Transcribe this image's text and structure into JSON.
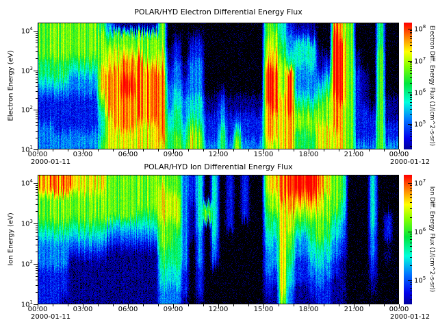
{
  "figure": {
    "background": "#ffffff"
  },
  "colormap": {
    "name": "idl-rainbow-black-low",
    "stops": [
      [
        0.0,
        0,
        0,
        0
      ],
      [
        0.08,
        0,
        0,
        110
      ],
      [
        0.2,
        0,
        0,
        235
      ],
      [
        0.33,
        0,
        120,
        255
      ],
      [
        0.45,
        0,
        255,
        220
      ],
      [
        0.58,
        0,
        230,
        60
      ],
      [
        0.7,
        130,
        255,
        0
      ],
      [
        0.8,
        255,
        255,
        0
      ],
      [
        0.9,
        255,
        130,
        0
      ],
      [
        1.0,
        255,
        0,
        0
      ]
    ]
  },
  "chart_data": [
    {
      "type": "heatmap",
      "title": "POLAR/HYD  Electron Differential Energy Flux",
      "ylabel": "Electron Energy (eV)",
      "colorbar_label": "Electron Diff. Energy Flux (1/(cm^2-s-sr))",
      "x_ticks": [
        "00:00",
        "03:00",
        "06:00",
        "09:00",
        "12:00",
        "15:00",
        "18:00",
        "21:00",
        "00:00"
      ],
      "start_date": "2000-01-11",
      "end_date": "2000-01-12",
      "time_range_hours": [
        0,
        24
      ],
      "y_tick_exponents": [
        4,
        3,
        2,
        1
      ],
      "y_axis_log_range": [
        1.0,
        4.21
      ],
      "colorbar_tick_exponents": [
        8,
        7,
        6,
        5
      ],
      "colorbar_log_range": [
        4.2,
        8.2
      ],
      "grid_note": "rows: energy bins top 10^4.2 eV to bottom 10^1 eV; cols: 48 half-hour bins 00:00-24:00; digit 0=no flux(black) .. 9=max flux(red)",
      "grid": [
        "666666665311111160000000000000654211100876000500",
        "666666666566666660101100000000664322200976000500",
        "666666666666666660202200000000765344400986000500",
        "666666666777776671202200000000775444411986100600",
        "555555556778887771313300000000876544412986100600",
        "555544447888888882313300000000986933323986210600",
        "444433337889988882323300000000986933334986210600",
        "333333337889988883423300100000986933345986210600",
        "222222226888888883434411211111987944456886210611",
        "222222225888888883534411311111887955566876221611",
        "222222224788888884535422322222877866666876222611",
        "332222224788877784546522423222877866677876222622",
        "333333334777777785647622525222877855577776222622",
        "333333335777777775657633536333767855577776333633"
      ]
    },
    {
      "type": "heatmap",
      "title": "POLAR/HYD  Ion Differential Energy Flux",
      "ylabel": "Ion Energy (eV)",
      "colorbar_label": "Ion Diff. Energy Flux (1/(cm^2-s-sr))",
      "x_ticks": [
        "00:00",
        "03:00",
        "06:00",
        "09:00",
        "12:00",
        "15:00",
        "18:00",
        "21:00",
        "00:00"
      ],
      "start_date": "2000-01-11",
      "end_date": "2000-01-12",
      "time_range_hours": [
        0,
        24
      ],
      "y_tick_exponents": [
        4,
        3,
        2,
        1
      ],
      "y_axis_log_range": [
        1.0,
        4.2
      ],
      "colorbar_tick_exponents": [
        7,
        6,
        5
      ],
      "colorbar_log_range": [
        4.5,
        7.17
      ],
      "grid_note": "rows: energy bins top 10^4.2 eV to bottom 10^1 eV; cols: 48 half-hour bins 00:00-24:00; digit 0=no flux(black) .. 9=max flux(red)",
      "grid": [
        "888887777666666666632404020200778999987650004000",
        "888887777666666676632404020200778999987650004000",
        "666666666666666677732404020200668888876650004000",
        "666666666666666677731464020200667877776640004000",
        "666666666666655577731464020200557766666540004020",
        "555555555444444466631404020000547755565430004020",
        "444444444333333366531304000000447644565430003020",
        "333333333222222266530303000000437633454320003000",
        "333322222111111155530303000000337533444320003010",
        "333311111111111155530302000000337522343210002000",
        "222211111111111144420200000000327422333210002000",
        "222211111111111144420200000000227422232110001000",
        "222211111111111133320200000000217311222110001000",
        "222111111111111133310100000000116311122110000000"
      ]
    }
  ]
}
